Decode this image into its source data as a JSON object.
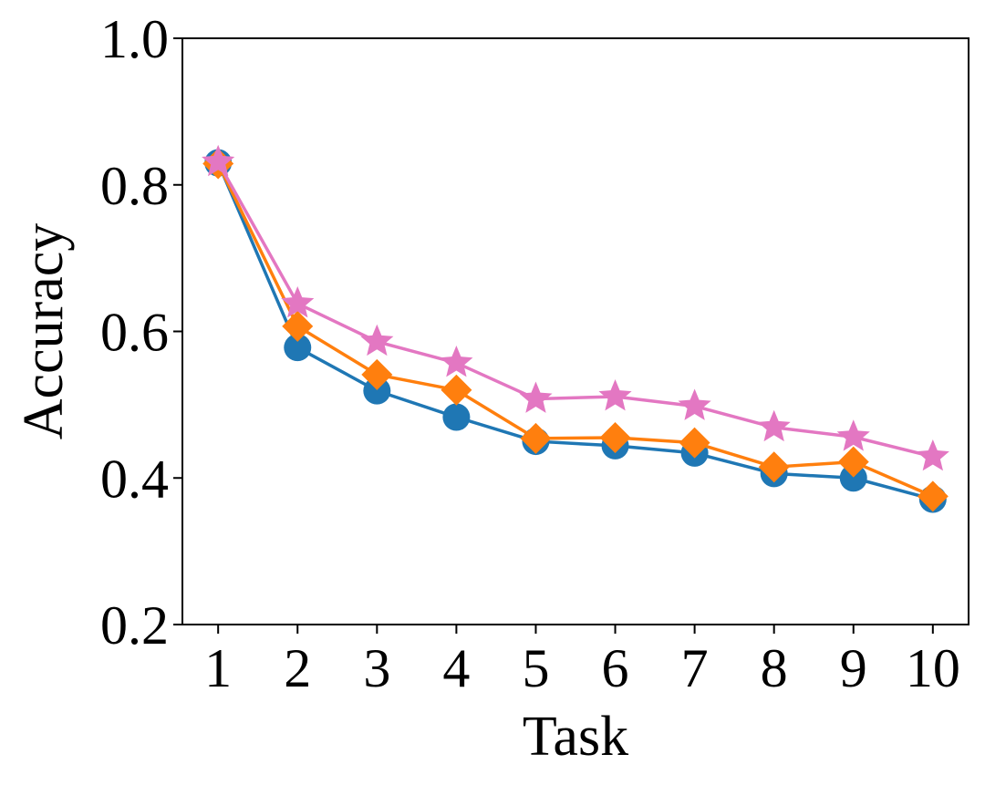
{
  "chart_data": {
    "type": "line",
    "xlabel": "Task",
    "ylabel": "Accuracy",
    "x": [
      1,
      2,
      3,
      4,
      5,
      6,
      7,
      8,
      9,
      10
    ],
    "xticks": [
      "1",
      "2",
      "3",
      "4",
      "5",
      "6",
      "7",
      "8",
      "9",
      "10"
    ],
    "yticks": [
      "0.2",
      "0.4",
      "0.6",
      "0.8",
      "1.0"
    ],
    "ytick_values": [
      0.2,
      0.4,
      0.6,
      0.8,
      1.0
    ],
    "xlim": [
      0.55,
      10.45
    ],
    "ylim": [
      0.2,
      1.0
    ],
    "grid": false,
    "series": [
      {
        "marker": "circle",
        "color": "#1f77b4",
        "values": [
          0.83,
          0.578,
          0.519,
          0.483,
          0.45,
          0.444,
          0.434,
          0.406,
          0.4,
          0.371
        ]
      },
      {
        "marker": "diamond",
        "color": "#ff7f0e",
        "values": [
          0.829,
          0.607,
          0.541,
          0.52,
          0.454,
          0.455,
          0.448,
          0.415,
          0.422,
          0.375
        ]
      },
      {
        "marker": "star",
        "color": "#e377c2",
        "values": [
          0.831,
          0.638,
          0.586,
          0.557,
          0.508,
          0.511,
          0.498,
          0.469,
          0.456,
          0.429
        ]
      }
    ]
  }
}
